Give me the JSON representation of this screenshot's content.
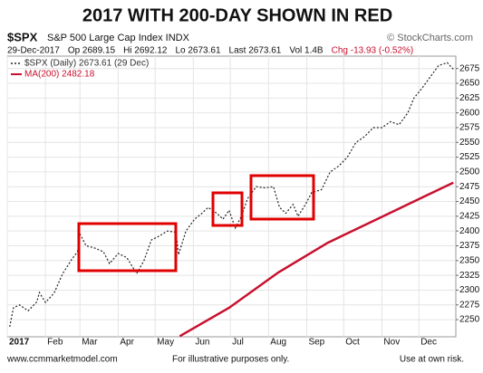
{
  "chart_data": {
    "type": "line",
    "title": "2017 WITH 200-DAY SHOWN IN RED",
    "symbol": "$SPX",
    "symbol_name": "S&P 500 Large Cap Index INDX",
    "source": "© StockCharts.com",
    "info": [
      "29-Dec-2017",
      "Op 2689.15",
      "Hi 2692.12",
      "Lo 2673.61",
      "Last 2673.61",
      "Vol 1.4B",
      "Chg -13.93 (-0.52%)"
    ],
    "footer": [
      "www.ccmmarketmodel.com",
      "For illustrative purposes only.",
      "Use at own risk."
    ],
    "xlim": [
      0,
      364
    ],
    "xticks": [
      {
        "value": 0,
        "label": "2017"
      },
      {
        "value": 31,
        "label": "Feb"
      },
      {
        "value": 59,
        "label": "Mar"
      },
      {
        "value": 90,
        "label": "Apr"
      },
      {
        "value": 120,
        "label": "May"
      },
      {
        "value": 151,
        "label": "Jun"
      },
      {
        "value": 181,
        "label": "Jul"
      },
      {
        "value": 212,
        "label": "Aug"
      },
      {
        "value": 243,
        "label": "Sep"
      },
      {
        "value": 273,
        "label": "Oct"
      },
      {
        "value": 304,
        "label": "Nov"
      },
      {
        "value": 334,
        "label": "Dec"
      }
    ],
    "ylim": [
      2221,
      2696
    ],
    "yticks": [
      2250,
      2275,
      2300,
      2325,
      2350,
      2375,
      2400,
      2425,
      2450,
      2475,
      2500,
      2525,
      2550,
      2575,
      2600,
      2625,
      2650,
      2675
    ],
    "grid": true,
    "series": [
      {
        "name": "$SPX (Daily) 2673.61 (29 Dec)",
        "color": "#222222",
        "line_style": "dotted",
        "x": [
          2,
          5,
          10,
          17,
          24,
          26,
          31,
          38,
          45,
          52,
          57,
          59,
          64,
          70,
          78,
          83,
          90,
          97,
          105,
          111,
          117,
          122,
          130,
          137,
          139,
          145,
          152,
          158,
          163,
          170,
          175,
          180,
          185,
          190,
          195,
          202,
          209,
          216,
          221,
          226,
          232,
          236,
          242,
          247,
          255,
          262,
          269,
          276,
          283,
          290,
          297,
          304,
          311,
          318,
          325,
          330,
          336,
          343,
          350,
          357,
          362
        ],
        "values": [
          2238,
          2270,
          2275,
          2265,
          2280,
          2296,
          2279,
          2295,
          2328,
          2351,
          2365,
          2395,
          2375,
          2372,
          2365,
          2345,
          2362,
          2355,
          2328,
          2350,
          2385,
          2390,
          2400,
          2398,
          2360,
          2400,
          2420,
          2430,
          2440,
          2430,
          2420,
          2435,
          2405,
          2425,
          2455,
          2475,
          2473,
          2475,
          2440,
          2430,
          2445,
          2425,
          2445,
          2465,
          2470,
          2500,
          2510,
          2525,
          2550,
          2560,
          2575,
          2575,
          2585,
          2580,
          2600,
          2625,
          2640,
          2660,
          2680,
          2685,
          2674
        ]
      },
      {
        "name": "MA(200) 2482.18",
        "color": "#c8102e",
        "line_style": "solid",
        "x": [
          140,
          180,
          220,
          260,
          300,
          340,
          362
        ],
        "values": [
          2222,
          2270,
          2330,
          2380,
          2420,
          2460,
          2482
        ]
      }
    ]
  }
}
